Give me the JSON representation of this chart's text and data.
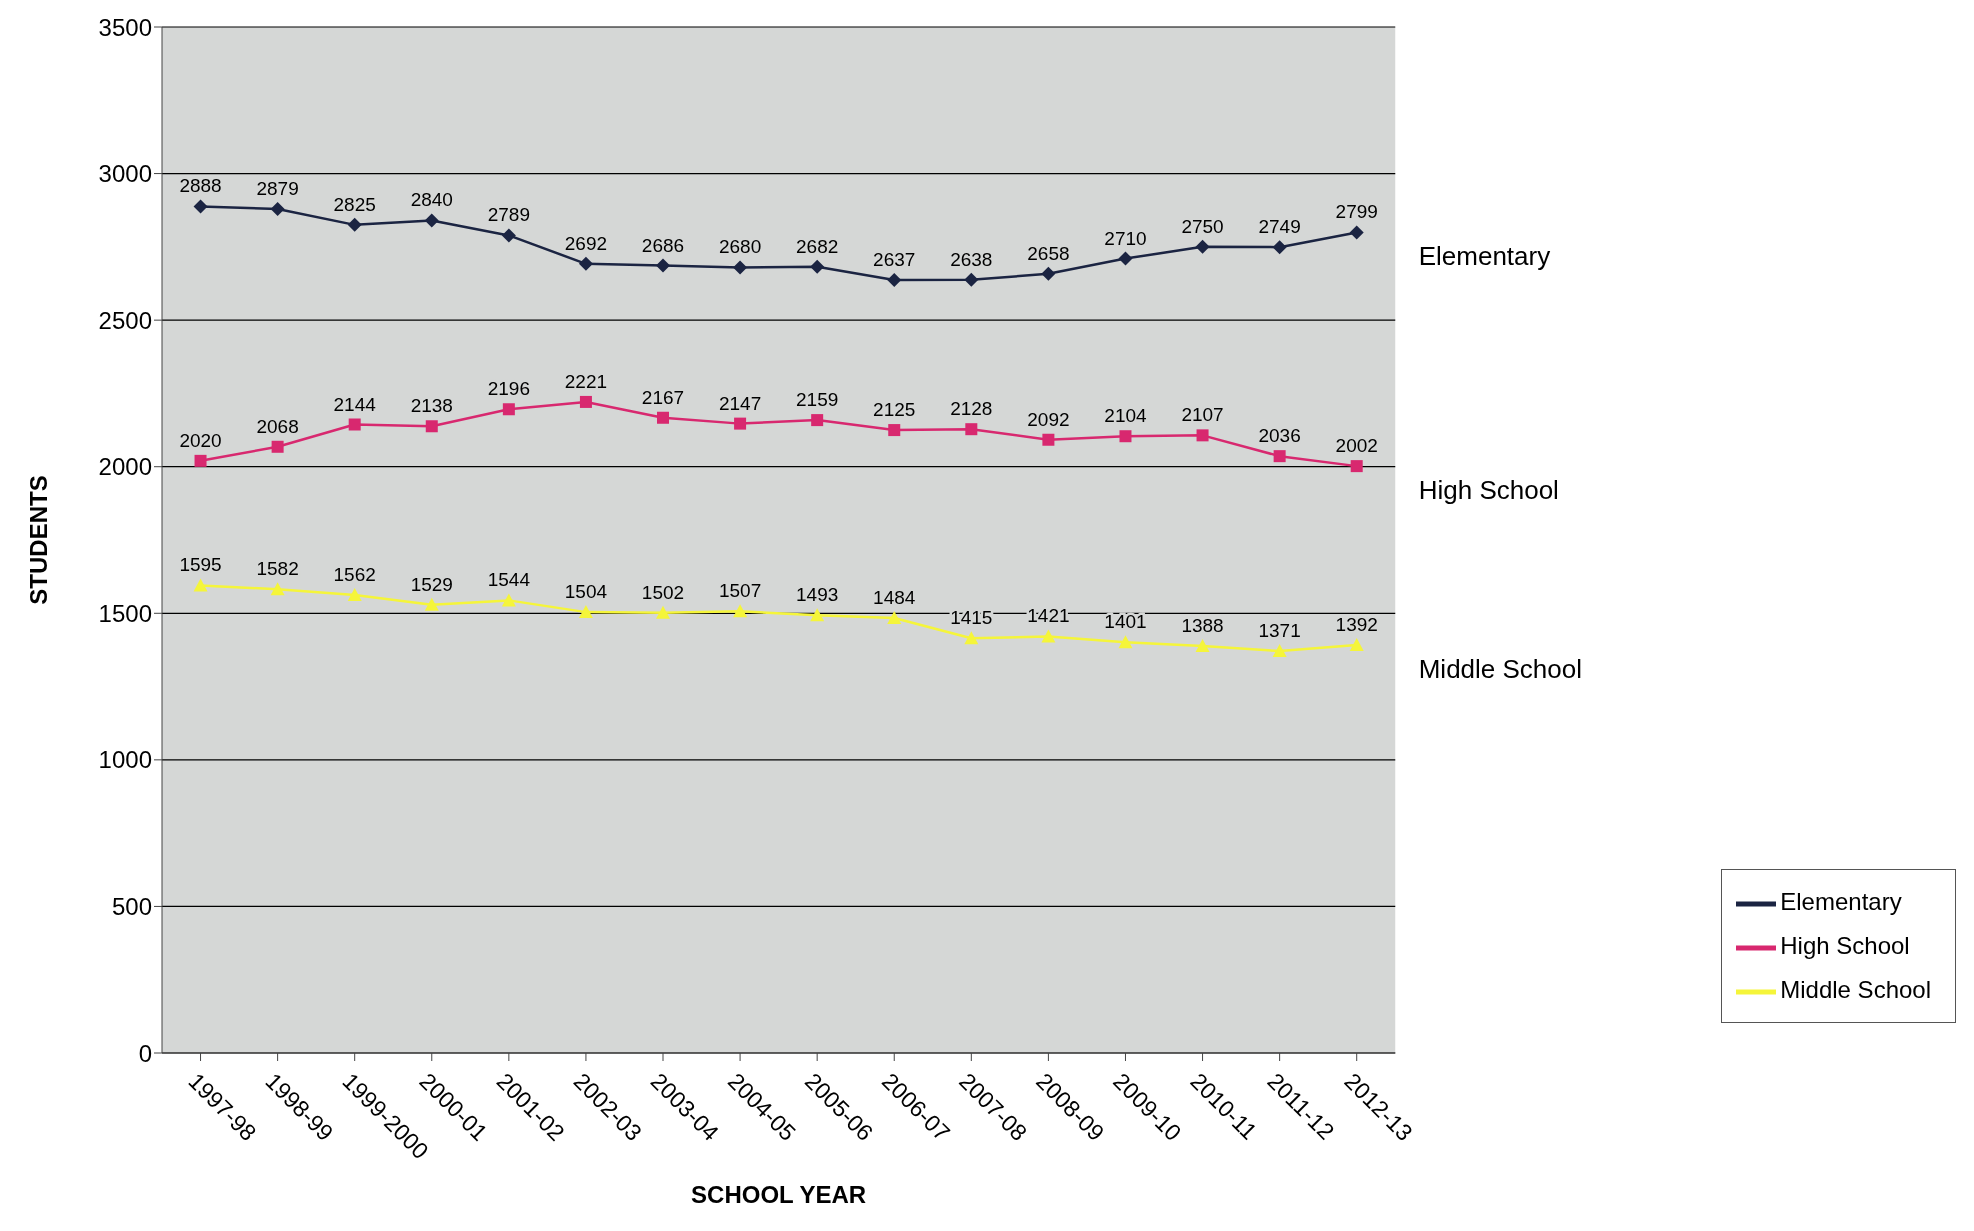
{
  "chart_data": {
    "type": "line",
    "xlabel": "SCHOOL YEAR",
    "ylabel": "STUDENTS",
    "categories": [
      "1997-98",
      "1998-99",
      "1999-2000",
      "2000-01",
      "2001-02",
      "2002-03",
      "2003-04",
      "2004-05",
      "2005-06",
      "2006-07",
      "2007-08",
      "2008-09",
      "2009-10",
      "2010-11",
      "2011-12",
      "2012-13"
    ],
    "series": [
      {
        "name": "Elementary",
        "color": "#1b2442",
        "marker": "diamond",
        "values": [
          2888,
          2879,
          2825,
          2840,
          2789,
          2692,
          2686,
          2680,
          2682,
          2637,
          2638,
          2658,
          2710,
          2750,
          2749,
          2799
        ]
      },
      {
        "name": "High School",
        "color": "#d8286f",
        "marker": "square",
        "values": [
          2020,
          2068,
          2144,
          2138,
          2196,
          2221,
          2167,
          2147,
          2159,
          2125,
          2128,
          2092,
          2104,
          2107,
          2036,
          2002
        ]
      },
      {
        "name": "Middle School",
        "color": "#f5f53a",
        "marker": "triangle",
        "values": [
          1595,
          1582,
          1562,
          1529,
          1544,
          1504,
          1502,
          1507,
          1493,
          1484,
          1415,
          1421,
          1401,
          1388,
          1371,
          1392
        ]
      }
    ],
    "ylim": [
      0,
      3500
    ],
    "yticks": [
      0,
      500,
      1000,
      1500,
      2000,
      2500,
      3000,
      3500
    ],
    "grid": "y",
    "legend": "bottom right",
    "data_labels": true,
    "line_style": "solid"
  }
}
